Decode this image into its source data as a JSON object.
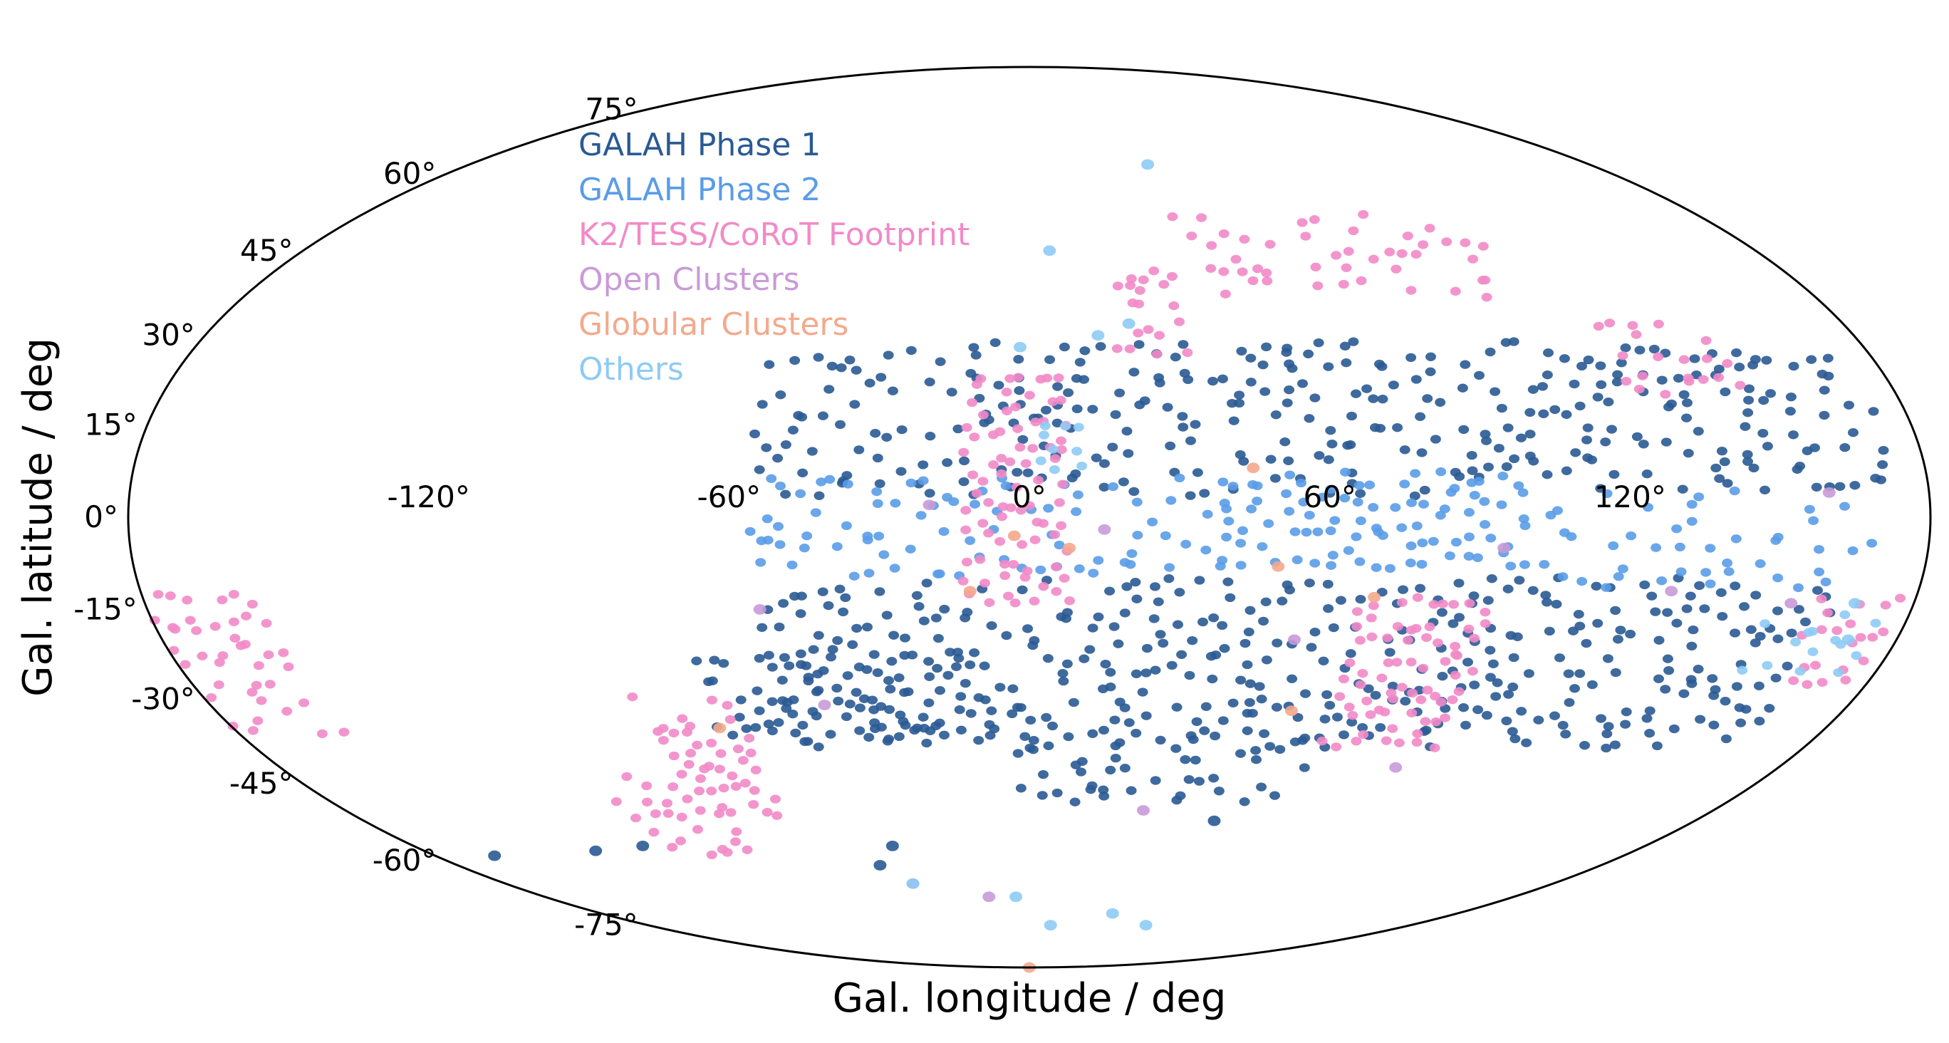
{
  "chart_data": {
    "type": "scatter",
    "projection": "mollweide",
    "title": "",
    "xlabel": "Gal. longitude / deg",
    "ylabel": "Gal. latitude / deg",
    "xlim": [
      -180,
      180
    ],
    "ylim": [
      -90,
      90
    ],
    "grid": false,
    "legend_placement": "upper-left inside",
    "x_ticks": [
      {
        "value": -120,
        "label": "-120°"
      },
      {
        "value": -60,
        "label": "-60°"
      },
      {
        "value": 0,
        "label": "0°"
      },
      {
        "value": 60,
        "label": "60°"
      },
      {
        "value": 120,
        "label": "120°"
      }
    ],
    "y_ticks": [
      {
        "value": 75,
        "label": "75°"
      },
      {
        "value": 60,
        "label": "60°"
      },
      {
        "value": 45,
        "label": "45°"
      },
      {
        "value": 30,
        "label": "30°"
      },
      {
        "value": 15,
        "label": "15°"
      },
      {
        "value": 0,
        "label": "0°"
      },
      {
        "value": -15,
        "label": "-15°"
      },
      {
        "value": -30,
        "label": "-30°"
      },
      {
        "value": -45,
        "label": "-45°"
      },
      {
        "value": -60,
        "label": "-60°"
      },
      {
        "value": -75,
        "label": "-75°"
      }
    ],
    "series": [
      {
        "name": "GALAH Phase 1",
        "color": "#2a5a93",
        "regions": [
          {
            "lon": [
              -55,
              175
            ],
            "lat": [
              5,
              29
            ],
            "density": 0.55
          },
          {
            "lon": [
              -55,
              165
            ],
            "lat": [
              -37,
              -10
            ],
            "density": 0.6
          },
          {
            "lon": [
              -70,
              -10
            ],
            "lat": [
              -36,
              -22
            ],
            "density": 0.8
          },
          {
            "lon": [
              -2,
              70
            ],
            "lat": [
              -47,
              -37
            ],
            "density": 0.4
          }
        ],
        "points": [
          [
            -162,
            -59
          ],
          [
            -129,
            -58
          ],
          [
            -113,
            -57
          ],
          [
            -40,
            -57
          ],
          [
            -47,
            -61
          ],
          [
            50,
            -52
          ]
        ]
      },
      {
        "name": "GALAH Phase 2",
        "color": "#5a9ce8",
        "regions": [
          {
            "lon": [
              -55,
              40
            ],
            "lat": [
              -8,
              6
            ],
            "density": 0.55
          },
          {
            "lon": [
              40,
              100
            ],
            "lat": [
              -7,
              8
            ],
            "density": 0.9
          },
          {
            "lon": [
              100,
              168
            ],
            "lat": [
              -10,
              6
            ],
            "density": 0.45
          }
        ],
        "points": []
      },
      {
        "name": "K2/TESS/CoRoT Footprint",
        "color": "#f28ac8",
        "regions": [
          {
            "lon": [
              -12,
              10
            ],
            "lat": [
              -13,
              23
            ],
            "density": 0.9
          },
          {
            "lon": [
              68,
              96
            ],
            "lat": [
              -37,
              -14
            ],
            "density": 0.95
          },
          {
            "lon": [
              20,
              35
            ],
            "lat": [
              28,
              43
            ],
            "density": 0.7
          },
          {
            "lon": [
              38,
              115
            ],
            "lat": [
              38,
              52
            ],
            "density": 0.35
          },
          {
            "lon": [
              125,
              148
            ],
            "lat": [
              21,
              32
            ],
            "density": 0.7
          },
          {
            "lon": [
              -178,
              -155
            ],
            "lat": [
              -35,
              -10
            ],
            "density": 0.6
          },
          {
            "lon": [
              -105,
              -80
            ],
            "lat": [
              -58,
              -42
            ],
            "density": 0.6
          },
          {
            "lon": [
              -85,
              -65
            ],
            "lat": [
              -50,
              -30
            ],
            "density": 0.75
          },
          {
            "lon": [
              160,
              178
            ],
            "lat": [
              -27,
              -12
            ],
            "density": 0.6
          }
        ],
        "points": []
      },
      {
        "name": "Open Clusters",
        "color": "#c99ad8",
        "regions": [],
        "points": [
          [
            -45,
            -31
          ],
          [
            -55,
            -15
          ],
          [
            -20,
            2
          ],
          [
            15,
            -2
          ],
          [
            55,
            -20
          ],
          [
            88,
            -42
          ],
          [
            95,
            -5
          ],
          [
            130,
            -12
          ],
          [
            155,
            -14
          ],
          [
            160,
            4
          ],
          [
            30,
            -50
          ],
          [
            -40,
            -65
          ],
          [
            -15,
            -68
          ]
        ]
      },
      {
        "name": "Globular Clusters",
        "color": "#f4a98c",
        "regions": [],
        "points": [
          [
            -3,
            -3
          ],
          [
            8,
            -5
          ],
          [
            -12,
            -12
          ],
          [
            45,
            8
          ],
          [
            -70,
            -35
          ],
          [
            50,
            -8
          ],
          [
            70,
            -13
          ],
          [
            58,
            -32
          ],
          [
            -2,
            -90
          ]
        ]
      },
      {
        "name": "Others",
        "color": "#8ecbf5",
        "regions": [
          {
            "lon": [
              3,
              12
            ],
            "lat": [
              9,
              16
            ],
            "density": 0.9
          },
          {
            "lon": [
              150,
              175
            ],
            "lat": [
              -25,
              -15
            ],
            "density": 0.35
          }
        ],
        "points": [
          [
            5,
            45
          ],
          [
            38,
            62
          ],
          [
            15,
            30
          ],
          [
            22,
            32
          ],
          [
            -2,
            28
          ],
          [
            -40,
            -65
          ],
          [
            -5,
            -68
          ],
          [
            10,
            -75
          ],
          [
            35,
            -72
          ],
          [
            55,
            -75
          ],
          [
            170,
            -20
          ],
          [
            168,
            -14
          ]
        ]
      }
    ]
  }
}
